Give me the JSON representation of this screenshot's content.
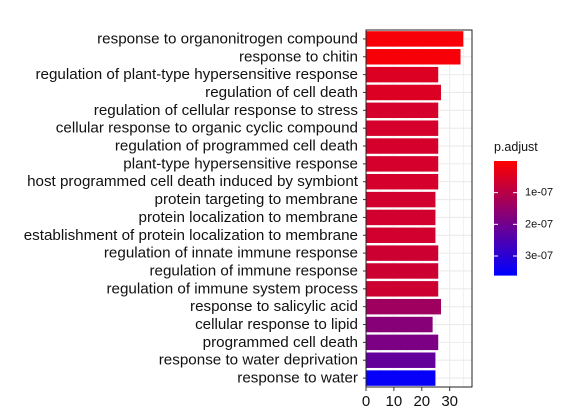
{
  "chart_data": {
    "type": "bar",
    "orientation": "horizontal",
    "categories": [
      "response to organonitrogen compound",
      "response to chitin",
      "regulation of plant-type hypersensitive response",
      "regulation of cell death",
      "regulation of cellular response to stress",
      "cellular response to organic cyclic compound",
      "regulation of programmed cell death",
      "plant-type hypersensitive response",
      "host programmed cell death induced by symbiont",
      "protein targeting to membrane",
      "protein localization to membrane",
      "establishment of protein localization to membrane",
      "regulation of innate immune response",
      "regulation of immune response",
      "regulation of immune system process",
      "response to salicylic acid",
      "cellular response to lipid",
      "programmed cell death",
      "response to water deprivation",
      "response to water"
    ],
    "values": [
      35,
      34,
      26,
      27,
      26,
      26,
      26,
      26,
      26,
      25,
      25,
      25,
      26,
      26,
      26,
      27,
      24,
      26,
      25,
      25
    ],
    "p_adjust": [
      1e-08,
      1e-08,
      5e-08,
      5e-08,
      6e-08,
      6e-08,
      6e-08,
      6e-08,
      6e-08,
      6.5e-08,
      6.5e-08,
      6.5e-08,
      7e-08,
      7e-08,
      7e-08,
      1.35e-07,
      1.7e-07,
      1.85e-07,
      2.2e-07,
      3.5e-07
    ],
    "xlim": [
      0,
      38
    ],
    "x_ticks": [
      0,
      10,
      20,
      30
    ],
    "x_tick_labels": [
      "0",
      "10",
      "20",
      "30"
    ],
    "xlabel": "",
    "ylabel": "",
    "grid": true,
    "legend": {
      "title": "p.adjust",
      "position": "right",
      "range": [
        0,
        3.6e-07
      ],
      "ticks": [
        1e-07,
        2e-07,
        3e-07
      ],
      "tick_labels": [
        "1e-07",
        "2e-07",
        "3e-07"
      ]
    },
    "colors": {
      "low": "#ff0000",
      "high": "#0000ff",
      "panel_background": "#ffffff",
      "grid": "#ebebeb",
      "bar_outline": "#ffffff"
    }
  }
}
